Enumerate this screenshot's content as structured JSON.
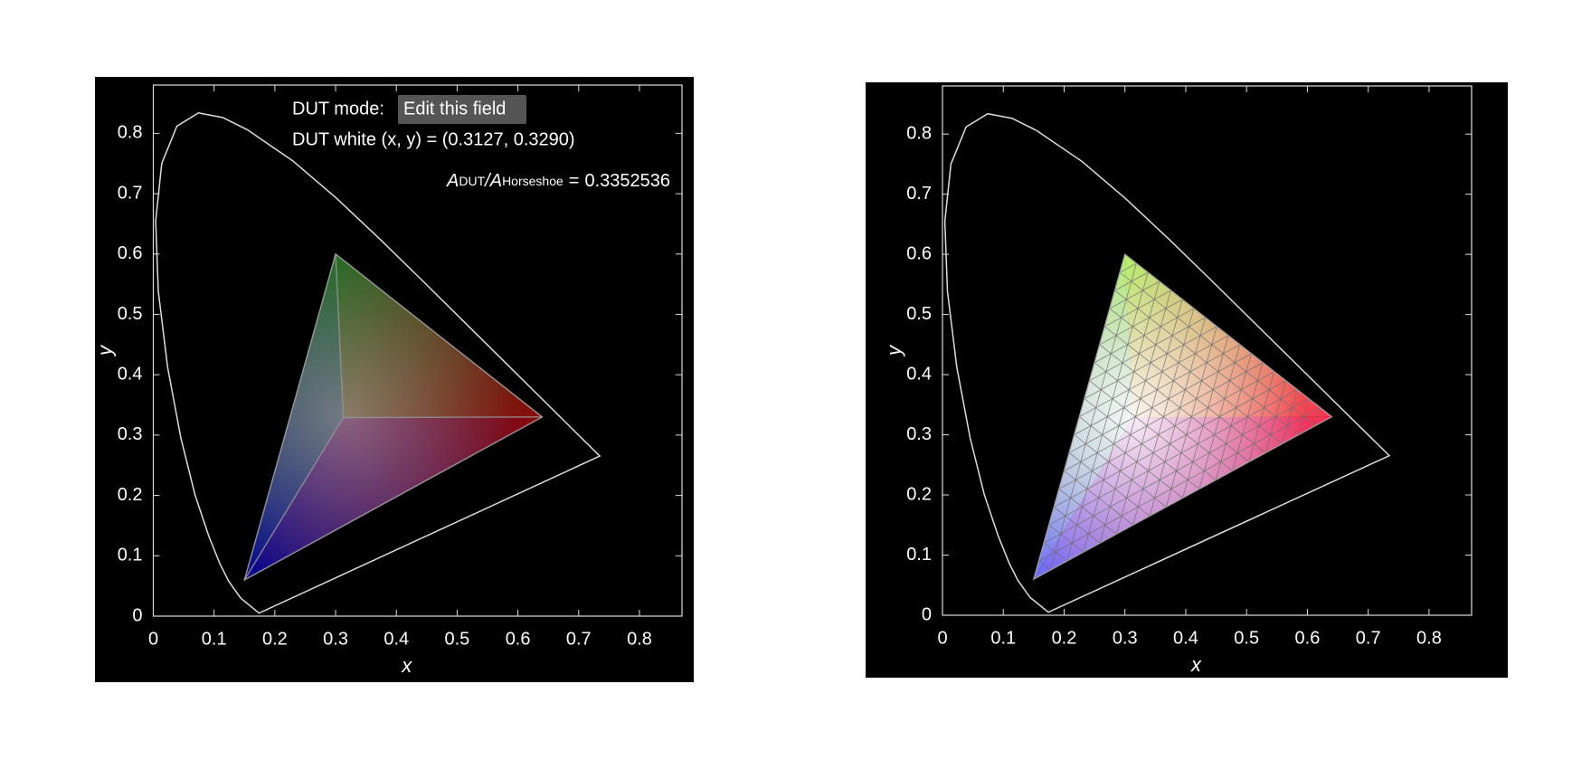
{
  "chart_data": [
    {
      "type": "gamut",
      "mode_label": "DUT mode:",
      "mode_field": "Edit this field",
      "white_label": "DUT white (x, y) = (0.3127, 0.3290)",
      "area_ratio_label": {
        "numerator": "A",
        "numerator_sub": "DUT",
        "operator": "/",
        "denominator": "A",
        "denominator_sub": "Horseshoe",
        "equals": "="
      },
      "area_ratio": 0.3352536,
      "xlabel": "x",
      "ylabel": "y",
      "xlim": [
        0,
        0.87
      ],
      "ylim": [
        0,
        0.88
      ],
      "xticks": [
        0,
        0.1,
        0.2,
        0.3,
        0.4,
        0.5,
        0.6,
        0.7,
        0.8
      ],
      "yticks": [
        0,
        0.1,
        0.2,
        0.3,
        0.4,
        0.5,
        0.6,
        0.7,
        0.8
      ],
      "locus": {
        "x": [
          0.1741,
          0.144,
          0.1241,
          0.1096,
          0.0913,
          0.0687,
          0.0454,
          0.0235,
          0.0082,
          0.0039,
          0.0139,
          0.0389,
          0.0743,
          0.1142,
          0.1547,
          0.2296,
          0.3016,
          0.3731,
          0.4441,
          0.5125,
          0.5752,
          0.627,
          0.6915,
          0.719,
          0.7347
        ],
        "y": [
          0.005,
          0.0297,
          0.0578,
          0.0868,
          0.1327,
          0.2007,
          0.295,
          0.4127,
          0.5384,
          0.6548,
          0.7502,
          0.812,
          0.8338,
          0.8262,
          0.8059,
          0.7543,
          0.6923,
          0.6245,
          0.5547,
          0.4866,
          0.4242,
          0.3725,
          0.3083,
          0.2809,
          0.2653
        ]
      },
      "gamut": {
        "x": [
          0.64,
          0.3,
          0.15
        ],
        "y": [
          0.33,
          0.6,
          0.06
        ]
      },
      "white": {
        "x": 0.3127,
        "y": 0.329
      }
    },
    {
      "type": "gamut-mesh",
      "xlabel": "x",
      "ylabel": "y",
      "xlim": [
        0,
        0.87
      ],
      "ylim": [
        0,
        0.88
      ],
      "xticks": [
        0,
        0.1,
        0.2,
        0.3,
        0.4,
        0.5,
        0.6,
        0.7,
        0.8
      ],
      "yticks": [
        0,
        0.1,
        0.2,
        0.3,
        0.4,
        0.5,
        0.6,
        0.7,
        0.8
      ],
      "locus": {
        "x": [
          0.1741,
          0.144,
          0.1241,
          0.1096,
          0.0913,
          0.0687,
          0.0454,
          0.0235,
          0.0082,
          0.0039,
          0.0139,
          0.0389,
          0.0743,
          0.1142,
          0.1547,
          0.2296,
          0.3016,
          0.3731,
          0.4441,
          0.5125,
          0.5752,
          0.627,
          0.6915,
          0.719,
          0.7347
        ],
        "y": [
          0.005,
          0.0297,
          0.0578,
          0.0868,
          0.1327,
          0.2007,
          0.295,
          0.4127,
          0.5384,
          0.6548,
          0.7502,
          0.812,
          0.8338,
          0.8262,
          0.8059,
          0.7543,
          0.6923,
          0.6245,
          0.5547,
          0.4866,
          0.4242,
          0.3725,
          0.3083,
          0.2809,
          0.2653
        ]
      },
      "gamut": {
        "x": [
          0.64,
          0.3,
          0.15
        ],
        "y": [
          0.33,
          0.6,
          0.06
        ]
      },
      "white": {
        "x": 0.3127,
        "y": 0.329
      }
    }
  ]
}
